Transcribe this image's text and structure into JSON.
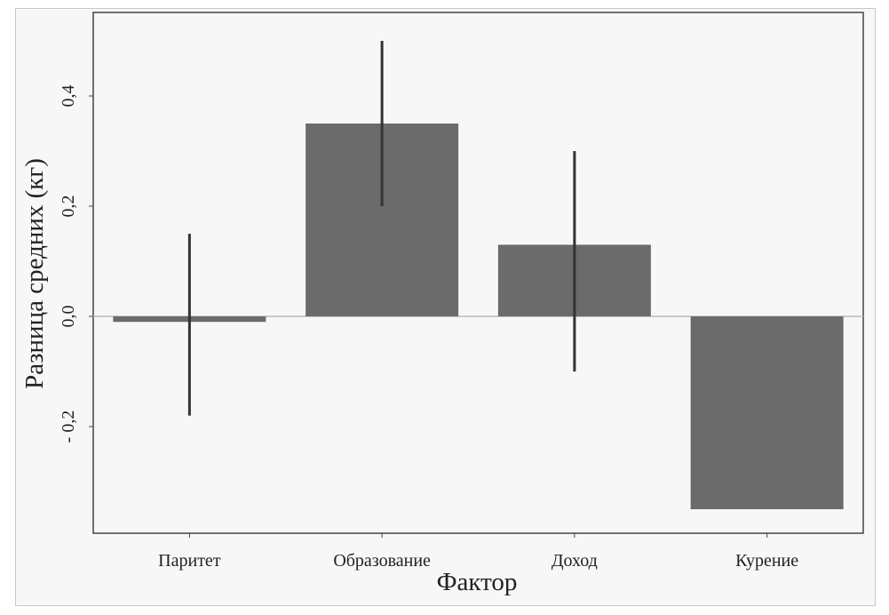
{
  "chart_data": {
    "type": "bar",
    "title": "",
    "xlabel": "Фактор",
    "ylabel": "Разница средних (кг)",
    "categories": [
      "Паритет",
      "Образование",
      "Доход",
      "Курение"
    ],
    "values": [
      -0.01,
      0.35,
      0.13,
      -0.35
    ],
    "error_low": [
      -0.18,
      0.2,
      -0.1,
      null
    ],
    "error_high": [
      0.15,
      0.5,
      0.3,
      null
    ],
    "yticks": [
      -0.2,
      0.0,
      0.2,
      0.4
    ],
    "ytick_labels": [
      "- 0,2",
      "0,0",
      "0,2",
      "0,4"
    ],
    "ylim": [
      -0.395,
      0.55
    ],
    "grid": false,
    "colors": {
      "bar": "#6b6b6b",
      "error": "#333333",
      "zero_line": "#bbbbbb",
      "background": "#f7f7f7"
    }
  }
}
